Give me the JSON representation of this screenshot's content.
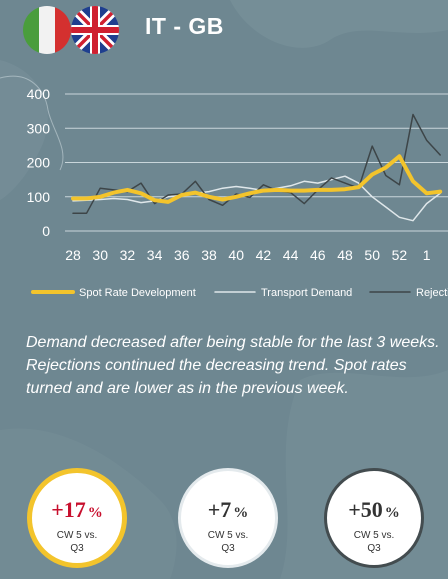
{
  "header": {
    "title": "IT - GB",
    "flags": [
      "italy-flag-icon",
      "uk-flag-icon"
    ]
  },
  "chart_data": {
    "type": "line",
    "title": "",
    "xlabel": "",
    "ylabel": "",
    "ylim": [
      0,
      400
    ],
    "yticks": [
      0,
      100,
      200,
      300,
      400
    ],
    "x": [
      "28",
      "29",
      "30",
      "31",
      "32",
      "33",
      "34",
      "35",
      "36",
      "37",
      "38",
      "39",
      "40",
      "41",
      "42",
      "43",
      "44",
      "45",
      "46",
      "47",
      "48",
      "49",
      "50",
      "51",
      "52",
      "53",
      "1",
      "2"
    ],
    "xtick_labels": [
      "28",
      "30",
      "32",
      "34",
      "36",
      "38",
      "40",
      "42",
      "44",
      "46",
      "48",
      "50",
      "52",
      "1"
    ],
    "grid": true,
    "legend_position": "bottom",
    "series": [
      {
        "name": "Spot Rate Development",
        "color": "#f3c42c",
        "values": [
          95,
          95,
          100,
          112,
          120,
          110,
          90,
          85,
          105,
          112,
          100,
          92,
          100,
          110,
          118,
          120,
          118,
          118,
          120,
          120,
          122,
          128,
          165,
          185,
          218,
          145,
          110,
          115
        ]
      },
      {
        "name": "Transport Demand",
        "color": "#dfe7ea",
        "values": [
          88,
          90,
          92,
          95,
          92,
          83,
          88,
          100,
          105,
          110,
          115,
          125,
          130,
          125,
          118,
          125,
          132,
          145,
          140,
          150,
          160,
          140,
          100,
          70,
          40,
          30,
          80,
          110
        ]
      },
      {
        "name": "Rejections",
        "color": "#3d4548",
        "values": [
          52,
          52,
          125,
          120,
          115,
          140,
          80,
          105,
          108,
          145,
          92,
          75,
          108,
          98,
          135,
          118,
          112,
          80,
          120,
          155,
          140,
          125,
          248,
          162,
          135,
          340,
          265,
          222
        ]
      }
    ]
  },
  "description": [
    "Demand decreased after being stable for the last 3 weeks.",
    "Rejections continued the decreasing trend. Spot rates",
    "turned and are lower as in the previous week."
  ],
  "kpis": [
    {
      "value": "+17",
      "unit": "%",
      "label_line1": "CW 5 vs.",
      "label_line2": "Q3",
      "accent": "#f3c42c"
    },
    {
      "value": "+7",
      "unit": "%",
      "label_line1": "CW 5 vs.",
      "label_line2": "Q3",
      "accent": "#e4eaed"
    },
    {
      "value": "+50",
      "unit": "%",
      "label_line1": "CW 5 vs.",
      "label_line2": "Q3",
      "accent": "#434c4f"
    }
  ]
}
